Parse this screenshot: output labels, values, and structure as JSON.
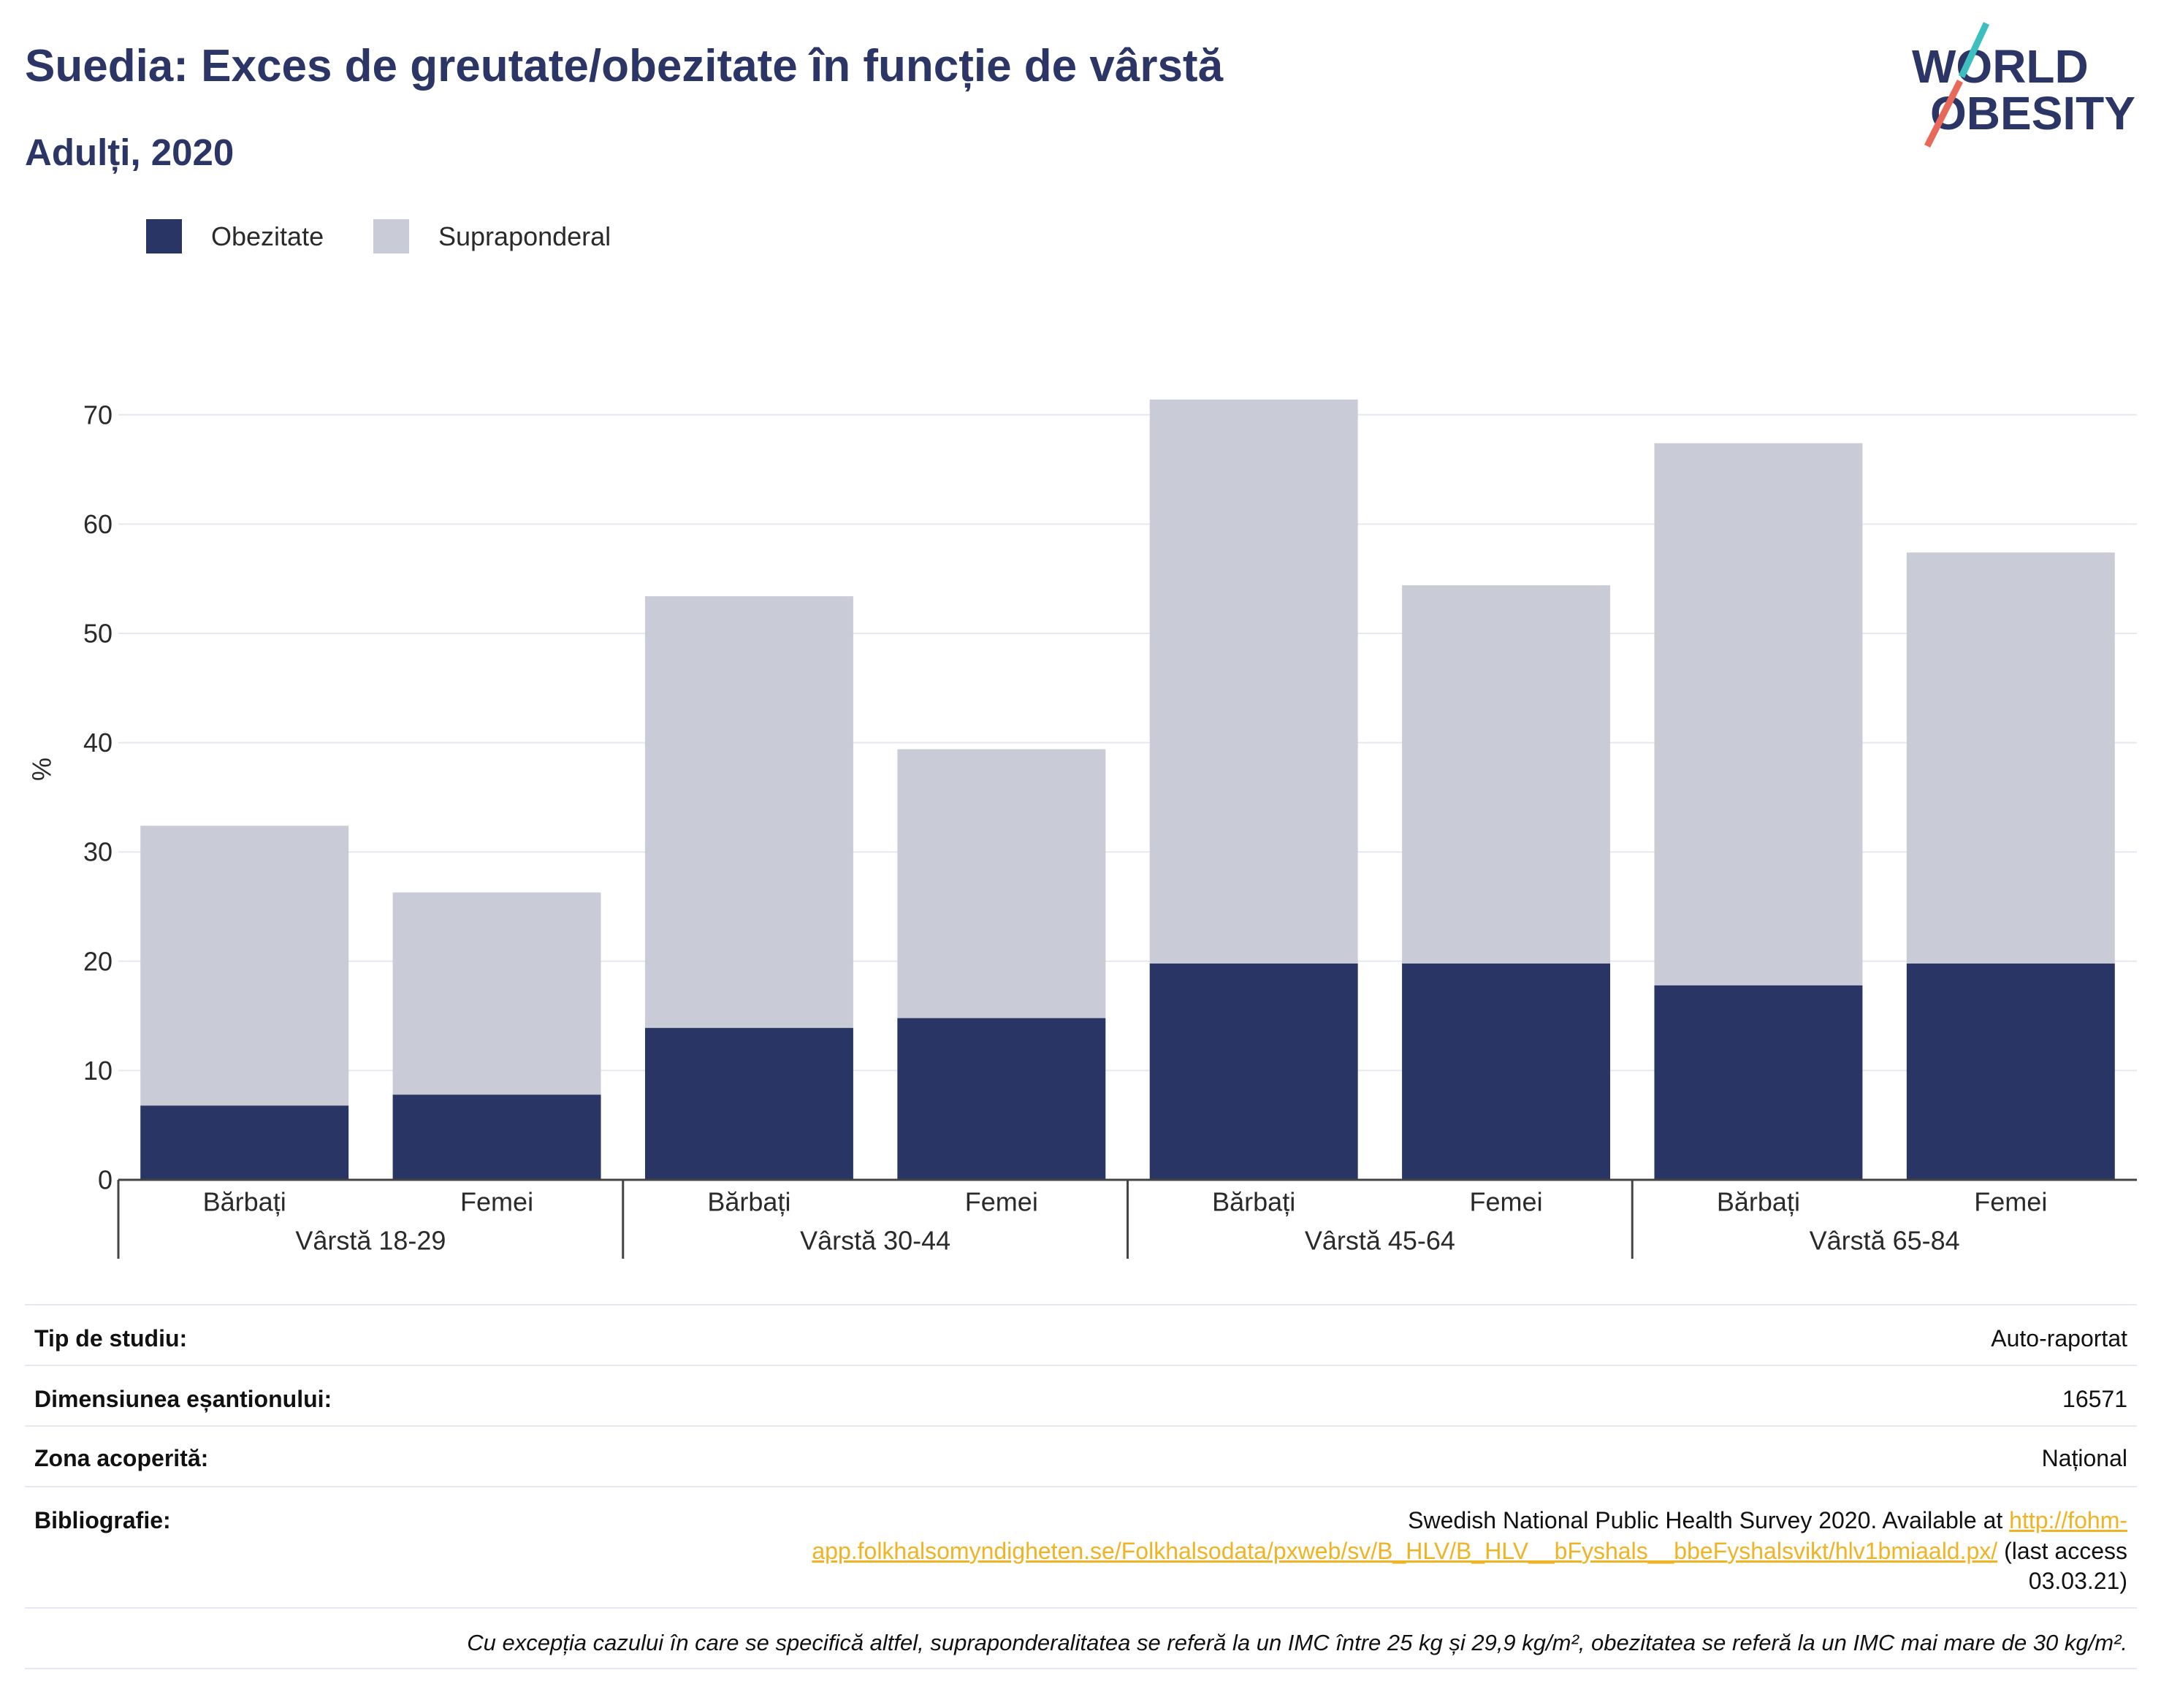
{
  "colors": {
    "brand_text": "#2b3566",
    "logo_teal": "#3dbfbf",
    "logo_salmon": "#e8695a",
    "link": "#f0b323",
    "gridline": "#e6e8ef",
    "axis": "#444444",
    "table_rule": "#e6e9f3"
  },
  "logo": {
    "line1": "WORLD",
    "line2": "OBESITY"
  },
  "chart_data": {
    "type": "bar",
    "barmode": "stack",
    "title": "Suedia: Exces de greutate/obezitate în funcție de vârstă",
    "subtitle": "Adulți, 2020",
    "ylabel": "%",
    "ylim": [
      0,
      75
    ],
    "yticks": [
      0,
      10,
      20,
      30,
      40,
      50,
      60,
      70
    ],
    "grid": true,
    "legend_position": "top-left",
    "groups": [
      {
        "label": "Vârstă 18-29",
        "categories": [
          "Bărbați",
          "Femei"
        ]
      },
      {
        "label": "Vârstă 30-44",
        "categories": [
          "Bărbați",
          "Femei"
        ]
      },
      {
        "label": "Vârstă 45-64",
        "categories": [
          "Bărbați",
          "Femei"
        ]
      },
      {
        "label": "Vârstă 65-84",
        "categories": [
          "Bărbați",
          "Femei"
        ]
      }
    ],
    "series": [
      {
        "name": "Obezitate",
        "color": "#293564",
        "values": [
          6.8,
          7.8,
          13.9,
          14.8,
          19.8,
          19.8,
          17.8,
          19.8
        ]
      },
      {
        "name": "Supraponderal",
        "color": "#c9cbd7",
        "values": [
          25.6,
          18.5,
          39.5,
          24.6,
          51.6,
          34.6,
          49.6,
          37.6
        ]
      }
    ]
  },
  "info_table": {
    "rows": [
      {
        "label": "Tip de studiu:",
        "value": "Auto-raportat"
      },
      {
        "label": "Dimensiunea eșantionului:",
        "value": "16571"
      },
      {
        "label": "Zona acoperită:",
        "value": "Național"
      }
    ],
    "bibliography": {
      "label": "Bibliografie:",
      "text": "Swedish National Public Health Survey 2020. Available at ",
      "url": "http://fohm-app.folkhalsomyndigheten.se/Folkhalsodata/pxweb/sv/B_HLV/B_HLV__bFyshals__bbeFyshalsvikt/hlv1bmiaald.px/",
      "suffix": " (last access 03.03.21)"
    },
    "note": "Cu excepția cazului în care se specifică altfel, supraponderalitatea se referă la un IMC între 25 kg și 29,9 kg/m², obezitatea se referă la un IMC mai mare de 30 kg/m²."
  }
}
